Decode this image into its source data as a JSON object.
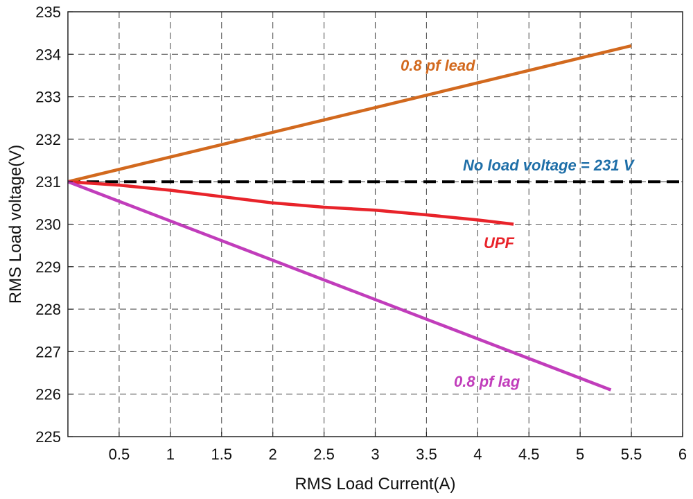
{
  "chart_data": {
    "type": "line",
    "title": "",
    "xlabel": "RMS Load Current(A)",
    "ylabel": "RMS Load voltage(V)",
    "xlim": [
      0,
      6
    ],
    "ylim": [
      225,
      235
    ],
    "xticks": [
      0.5,
      1,
      1.5,
      2,
      2.5,
      3,
      3.5,
      4,
      4.5,
      5,
      5.5,
      6
    ],
    "xtick_labels": [
      "0.5",
      "1",
      "1.5",
      "2",
      "2.5",
      "3",
      "3.5",
      "4",
      "4.5",
      "5",
      "5.5",
      "6"
    ],
    "yticks": [
      225,
      226,
      227,
      228,
      229,
      230,
      231,
      232,
      233,
      234,
      235
    ],
    "ytick_labels": [
      "225",
      "226",
      "227",
      "228",
      "229",
      "230",
      "231",
      "232",
      "233",
      "234",
      "235"
    ],
    "grid": true,
    "series": [
      {
        "name": "0.8 pf lead",
        "color": "#d2691e",
        "x": [
          0,
          5.5
        ],
        "y": [
          231,
          234.2
        ]
      },
      {
        "name": "UPF",
        "color": "#e8232a",
        "x": [
          0,
          0.5,
          1,
          1.5,
          2,
          2.5,
          3,
          3.5,
          4,
          4.35
        ],
        "y": [
          231,
          230.92,
          230.8,
          230.65,
          230.5,
          230.4,
          230.33,
          230.22,
          230.1,
          230.0
        ]
      },
      {
        "name": "0.8 pf lag",
        "color": "#c13dbb",
        "x": [
          0,
          5.3
        ],
        "y": [
          231,
          226.1
        ]
      }
    ],
    "reference_line": {
      "label": "No load voltage = 231 V",
      "value": 231,
      "color": "#000000",
      "label_color": "#1f6fa8"
    }
  }
}
